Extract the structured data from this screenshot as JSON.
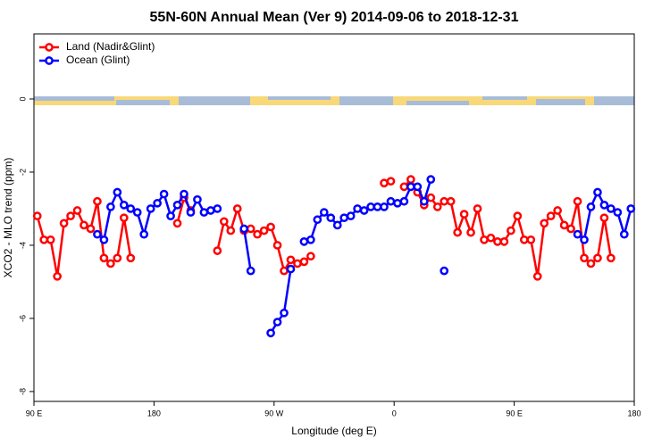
{
  "chart_data": {
    "type": "line",
    "title": "55N-60N Annual Mean (Ver 9)   2014-09-06 to 2018-12-31",
    "x_label": "Longitude (deg E)",
    "y_label": "XCO2 - MLO trend (ppm)",
    "xlim": [
      90,
      540
    ],
    "ylim": [
      -8.27,
      1.78
    ],
    "xticks": [
      {
        "value": 90,
        "label": "90 E"
      },
      180,
      {
        "value": 270,
        "label": "90 W"
      },
      {
        "value": 360,
        "label": "0"
      },
      {
        "value": 450,
        "label": "90 E"
      },
      {
        "value": 540,
        "label": "180"
      }
    ],
    "yticks": [
      0,
      -2,
      -4,
      -6,
      -8
    ],
    "grid": false,
    "legend": "top-left",
    "x": [
      92.5,
      97.5,
      102.5,
      107.5,
      112.5,
      117.5,
      122.5,
      127.5,
      132.5,
      137.5,
      142.5,
      147.5,
      152.5,
      157.5,
      162.5,
      167.5,
      172.5,
      177.5,
      182.5,
      187.5,
      192.5,
      197.5,
      202.5,
      207.5,
      212.5,
      217.5,
      222.5,
      227.5,
      232.5,
      237.5,
      242.5,
      247.5,
      252.5,
      257.5,
      262.5,
      267.5,
      272.5,
      277.5,
      282.5,
      287.5,
      292.5,
      297.5,
      302.5,
      307.5,
      312.5,
      317.5,
      322.5,
      327.5,
      332.5,
      337.5,
      342.5,
      347.5,
      352.5,
      357.5,
      362.5,
      367.5,
      372.5,
      377.5,
      382.5,
      387.5,
      392.5,
      397.5,
      402.5,
      407.5,
      412.5,
      417.5,
      422.5,
      427.5,
      432.5,
      437.5,
      442.5,
      447.5,
      452.5,
      457.5,
      462.5,
      467.5,
      472.5,
      477.5,
      482.5,
      487.5,
      492.5,
      497.5,
      502.5,
      507.5,
      512.5,
      517.5,
      522.5,
      527.5,
      532.5,
      537.5
    ],
    "series": [
      {
        "name": "Land (Nadir&Glint)",
        "color": "#ff0000",
        "values": [
          -3.2,
          -3.85,
          -3.85,
          -4.85,
          -3.4,
          -3.2,
          -3.05,
          -3.45,
          -3.55,
          -2.8,
          -4.35,
          -4.5,
          -4.35,
          -3.25,
          -4.35,
          null,
          null,
          null,
          null,
          null,
          null,
          -3.4,
          -2.7,
          -3.05,
          null,
          null,
          null,
          -4.15,
          -3.35,
          -3.6,
          -3.0,
          -3.6,
          -3.55,
          -3.7,
          -3.6,
          -3.5,
          -4.0,
          -4.7,
          -4.4,
          -4.5,
          -4.45,
          -4.3,
          null,
          null,
          null,
          null,
          null,
          null,
          null,
          null,
          null,
          null,
          -2.3,
          -2.25,
          null,
          -2.4,
          -2.2,
          -2.55,
          -2.9,
          -2.7,
          -2.95,
          -2.8,
          -2.8,
          -3.65,
          -3.15,
          -3.65,
          -3.0,
          -3.85,
          -3.8,
          -3.9,
          -3.9,
          -3.6,
          -3.2,
          -3.85,
          -3.85,
          -4.85,
          -3.4,
          -3.2,
          -3.05,
          -3.45,
          -3.55,
          -2.8,
          -4.35,
          -4.5,
          -4.35,
          -3.25,
          -4.35,
          null,
          null,
          null
        ]
      },
      {
        "name": "Ocean (Glint)",
        "color": "#0000ff",
        "values": [
          null,
          null,
          null,
          null,
          null,
          null,
          null,
          null,
          null,
          -3.7,
          -3.85,
          -2.95,
          -2.55,
          -2.9,
          -3.0,
          -3.1,
          -3.7,
          -3.0,
          -2.85,
          -2.6,
          -3.2,
          -2.9,
          -2.6,
          -3.1,
          -2.75,
          -3.1,
          -3.05,
          -3.0,
          null,
          null,
          null,
          -3.55,
          -4.7,
          null,
          null,
          -6.4,
          -6.1,
          -5.85,
          -4.65,
          null,
          -3.9,
          -3.85,
          -3.3,
          -3.1,
          -3.25,
          -3.45,
          -3.25,
          -3.2,
          -3.0,
          -3.05,
          -2.95,
          -2.95,
          -2.95,
          -2.8,
          -2.85,
          -2.8,
          -2.4,
          -2.4,
          -2.8,
          -2.2,
          null,
          -4.7,
          null,
          null,
          null,
          null,
          null,
          null,
          null,
          null,
          null,
          null,
          null,
          null,
          null,
          null,
          null,
          null,
          null,
          null,
          null,
          -3.7,
          -3.85,
          -2.95,
          -2.55,
          -2.9,
          -3.0,
          -3.1,
          -3.7,
          -3.0
        ]
      }
    ]
  }
}
